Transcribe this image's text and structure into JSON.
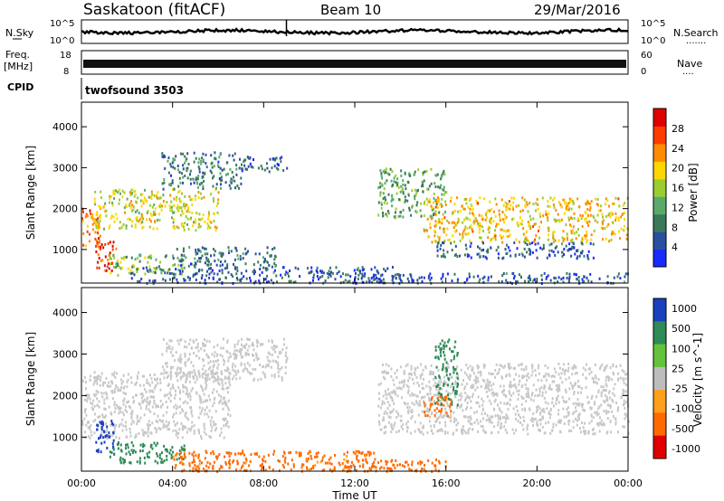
{
  "header": {
    "station": "Saskatoon (fitACF)",
    "beam": "Beam 10",
    "date": "29/Mar/2016"
  },
  "noise_panel": {
    "left_label": "N.Sky",
    "right_label": "N.Search",
    "right_label_dots": ".......",
    "ticks": [
      "10^5",
      "10^0"
    ]
  },
  "freq_panel": {
    "left_label_top": "Freq.",
    "left_label_units": "[MHz]",
    "right_label": "Nave",
    "right_label_dots": "....",
    "left_ticks": [
      "18",
      "8"
    ],
    "right_ticks": [
      "60",
      "0"
    ]
  },
  "cpid_panel": {
    "left_label": "CPID",
    "program": "twofsound  3503"
  },
  "colors": {
    "noise_trace": "#000000",
    "ground_scatter": "#c8c8c8",
    "power_scale": [
      "#1a2aff",
      "#2b4fa0",
      "#3a7a5a",
      "#5aab6a",
      "#9acd32",
      "#ffd700",
      "#ff8c00",
      "#ff3c00",
      "#e00000"
    ],
    "velocity_scale": [
      "#1a40c0",
      "#2e8a57",
      "#66c23a",
      "#bdbdbd",
      "#ff9f1a",
      "#ff6a00",
      "#e00000"
    ]
  },
  "chart_data": [
    {
      "type": "heatmap",
      "panel": "power",
      "title": "",
      "xlabel": "Time UT",
      "ylabel": "Slant Range [km]",
      "xlim": [
        "00:00",
        "24:00"
      ],
      "ylim": [
        180,
        4600
      ],
      "x_tick_labels": [
        "00:00",
        "04:00",
        "08:00",
        "12:00",
        "16:00",
        "20:00",
        "00:00"
      ],
      "y_tick_labels": [
        "1000",
        "2000",
        "3000",
        "4000"
      ],
      "colorbar": {
        "label": "Power [dB]",
        "range": [
          0,
          32
        ],
        "tick_labels": [
          "28",
          "24",
          "20",
          "16",
          "12",
          "8",
          "4"
        ]
      },
      "echo_regions": [
        {
          "t_start": 0.0,
          "t_end": 0.8,
          "range_low": 1000,
          "range_high": 2100,
          "power_db": 24
        },
        {
          "t_start": 0.6,
          "t_end": 1.5,
          "range_low": 500,
          "range_high": 1300,
          "power_db": 28
        },
        {
          "t_start": 1.2,
          "t_end": 4.5,
          "range_low": 400,
          "range_high": 900,
          "power_db": 14
        },
        {
          "t_start": 0.5,
          "t_end": 6.0,
          "range_low": 1500,
          "range_high": 2500,
          "power_db": 18
        },
        {
          "t_start": 3.5,
          "t_end": 7.0,
          "range_low": 2500,
          "range_high": 3400,
          "power_db": 8
        },
        {
          "t_start": 7.0,
          "t_end": 9.0,
          "range_low": 2900,
          "range_high": 3300,
          "power_db": 6
        },
        {
          "t_start": 4.0,
          "t_end": 8.5,
          "range_low": 600,
          "range_high": 1100,
          "power_db": 8
        },
        {
          "t_start": 2.0,
          "t_end": 14.0,
          "range_low": 200,
          "range_high": 600,
          "power_db": 6
        },
        {
          "t_start": 13.0,
          "t_end": 16.0,
          "range_low": 1800,
          "range_high": 3000,
          "power_db": 12
        },
        {
          "t_start": 15.0,
          "t_end": 24.0,
          "range_low": 1200,
          "range_high": 2300,
          "power_db": 20
        },
        {
          "t_start": 15.5,
          "t_end": 22.5,
          "range_low": 800,
          "range_high": 1200,
          "power_db": 6
        },
        {
          "t_start": 12.0,
          "t_end": 24.0,
          "range_low": 200,
          "range_high": 450,
          "power_db": 6
        }
      ]
    },
    {
      "type": "heatmap",
      "panel": "velocity",
      "title": "",
      "xlabel": "Time UT",
      "ylabel": "Slant Range [km]",
      "xlim": [
        "00:00",
        "24:00"
      ],
      "ylim": [
        180,
        4600
      ],
      "x_tick_labels": [
        "00:00",
        "04:00",
        "08:00",
        "12:00",
        "16:00",
        "20:00",
        "00:00"
      ],
      "y_tick_labels": [
        "1000",
        "2000",
        "3000",
        "4000"
      ],
      "colorbar": {
        "label": "Velocity [m s^-1]",
        "range": [
          -1000,
          1000
        ],
        "tick_labels": [
          "1000",
          "500",
          "100",
          "25",
          "-25",
          "-100",
          "-500",
          "-1000"
        ]
      },
      "echo_regions": [
        {
          "t_start": 0.0,
          "t_end": 6.5,
          "range_low": 1000,
          "range_high": 2600,
          "velocity": 0,
          "ground_scatter": true
        },
        {
          "t_start": 3.5,
          "t_end": 9.0,
          "range_low": 2400,
          "range_high": 3400,
          "velocity": 0,
          "ground_scatter": true
        },
        {
          "t_start": 0.6,
          "t_end": 1.4,
          "range_low": 600,
          "range_high": 1500,
          "velocity": 800
        },
        {
          "t_start": 1.2,
          "t_end": 4.5,
          "range_low": 400,
          "range_high": 900,
          "velocity": 150
        },
        {
          "t_start": 4.0,
          "t_end": 13.0,
          "range_low": 200,
          "range_high": 700,
          "velocity": -120
        },
        {
          "t_start": 13.0,
          "t_end": 24.0,
          "range_low": 1100,
          "range_high": 2800,
          "velocity": 0,
          "ground_scatter": true
        },
        {
          "t_start": 15.5,
          "t_end": 16.5,
          "range_low": 1800,
          "range_high": 3400,
          "velocity": 300
        },
        {
          "t_start": 15.0,
          "t_end": 16.2,
          "range_low": 1500,
          "range_high": 2000,
          "velocity": -300
        },
        {
          "t_start": 11.5,
          "t_end": 16.0,
          "range_low": 200,
          "range_high": 500,
          "velocity": -200
        }
      ]
    }
  ]
}
